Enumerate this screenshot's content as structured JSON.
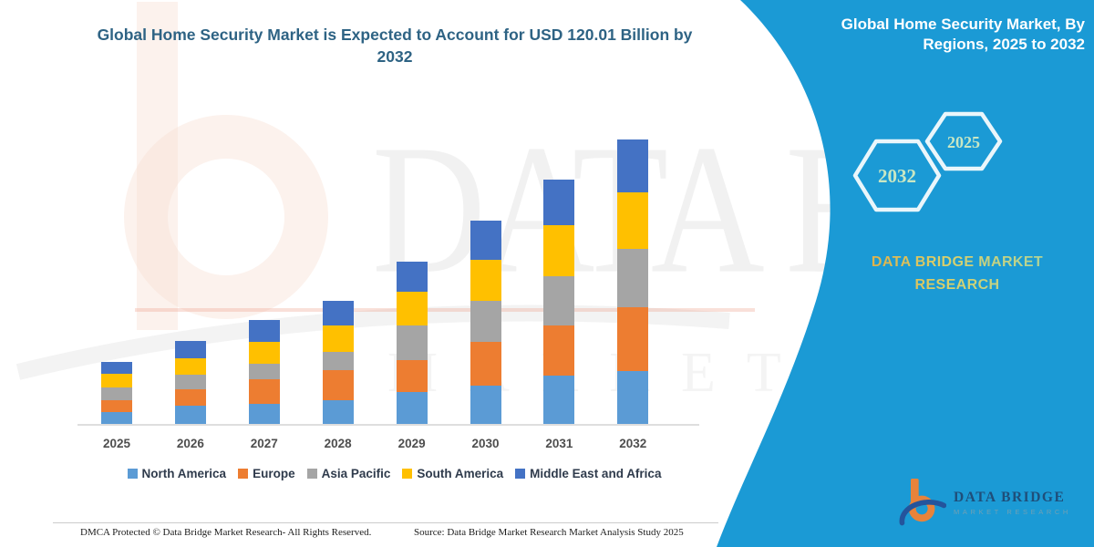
{
  "page": {
    "title": "Global Home Security Market is Expected to Account for USD 120.01 Billion by 2032"
  },
  "side_panel": {
    "heading": "Global Home Security Market, By Regions, 2025 to 2032",
    "hexagon_large": "2032",
    "hexagon_small": "2025",
    "brand_line1": "DATA BRIDGE MARKET",
    "brand_line2": "RESEARCH",
    "panel_color": "#1B9AD5"
  },
  "watermark": {
    "line1": "DATA BRIDGE",
    "line2": "MARKET RESEARCH"
  },
  "logo": {
    "title": "DATA BRIDGE",
    "subtitle": "MARKET RESEARCH"
  },
  "footer": {
    "left": "DMCA Protected © Data Bridge Market Research-  All Rights Reserved.",
    "right": "Source: Data Bridge Market Research  Market Analysis Study 2025"
  },
  "chart_data": {
    "type": "bar",
    "stacked": true,
    "title": "Global Home Security Market is Expected to Account for USD 120.01 Billion by 2032",
    "unit": "USD Billion",
    "categories": [
      "2025",
      "2026",
      "2027",
      "2028",
      "2029",
      "2030",
      "2031",
      "2032"
    ],
    "series": [
      {
        "name": "North America",
        "color": "#5B9BD5",
        "values": [
          5.2,
          7.7,
          8.5,
          9.9,
          13.5,
          16.2,
          20.5,
          22.2
        ]
      },
      {
        "name": "Europe",
        "color": "#ED7D31",
        "values": [
          5.0,
          6.8,
          10.5,
          13.0,
          13.5,
          18.5,
          21.2,
          27.2
        ]
      },
      {
        "name": "Asia Pacific",
        "color": "#A5A5A5",
        "values": [
          5.2,
          6.4,
          6.4,
          7.7,
          14.7,
          17.3,
          20.5,
          24.3
        ]
      },
      {
        "name": "South America",
        "color": "#FFC000",
        "values": [
          5.6,
          6.8,
          9.2,
          10.9,
          14.1,
          17.3,
          21.8,
          24.1
        ]
      },
      {
        "name": "Middle East and Africa",
        "color": "#4472C4",
        "values": [
          5.0,
          7.3,
          9.4,
          10.3,
          12.6,
          16.3,
          19.2,
          22.21
        ]
      }
    ],
    "totals": [
      26.0,
      35.0,
      44.0,
      51.8,
      68.4,
      85.6,
      103.2,
      120.01
    ],
    "highlight_value": "USD 120.01 Billion by 2032",
    "y_axis_visible": false,
    "gridlines": false,
    "legend_position": "bottom"
  }
}
